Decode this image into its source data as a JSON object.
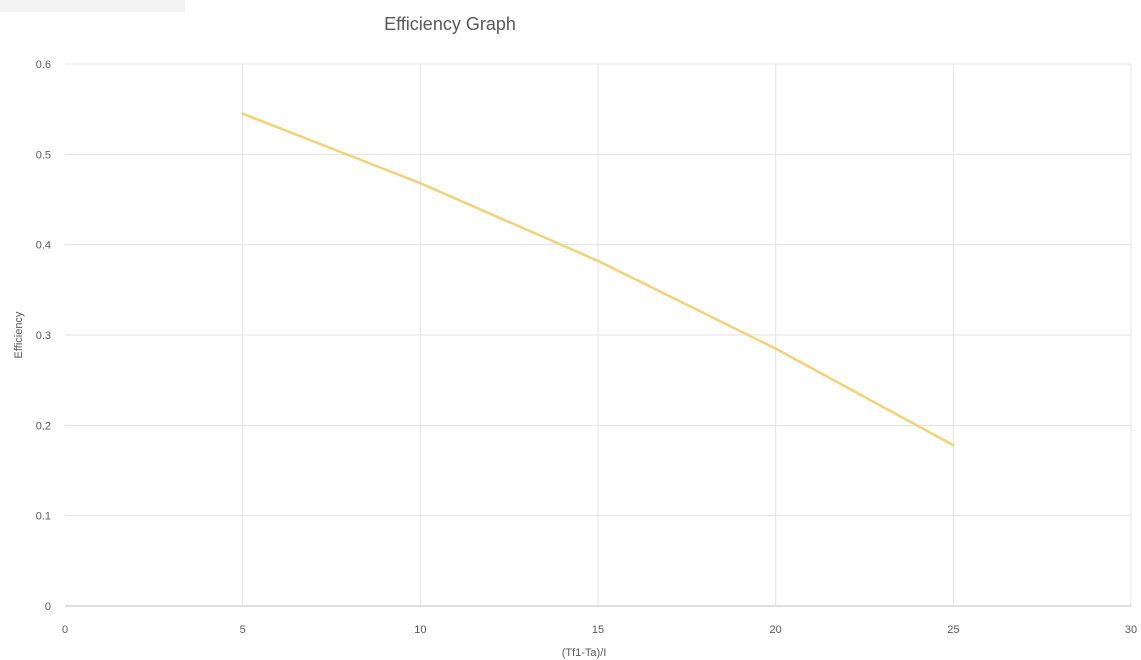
{
  "chart_data": {
    "type": "line",
    "title": "Efficiency Graph",
    "xlabel": "(Tf1-Ta)/I",
    "ylabel": "Efficiency",
    "xlim": [
      0,
      30
    ],
    "ylim": [
      0,
      0.6
    ],
    "x_ticks": [
      "0",
      "5",
      "10",
      "15",
      "20",
      "25",
      "30"
    ],
    "y_ticks": [
      "0",
      "0.1",
      "0.2",
      "0.3",
      "0.4",
      "0.5",
      "0.6"
    ],
    "grid": true,
    "legend": "none",
    "series": [
      {
        "color": "#f2d27a",
        "points": [
          {
            "x": 5,
            "y": 0.545
          },
          {
            "x": 10,
            "y": 0.468
          },
          {
            "x": 15,
            "y": 0.382
          },
          {
            "x": 20,
            "y": 0.285
          },
          {
            "x": 25,
            "y": 0.178
          }
        ]
      }
    ]
  }
}
